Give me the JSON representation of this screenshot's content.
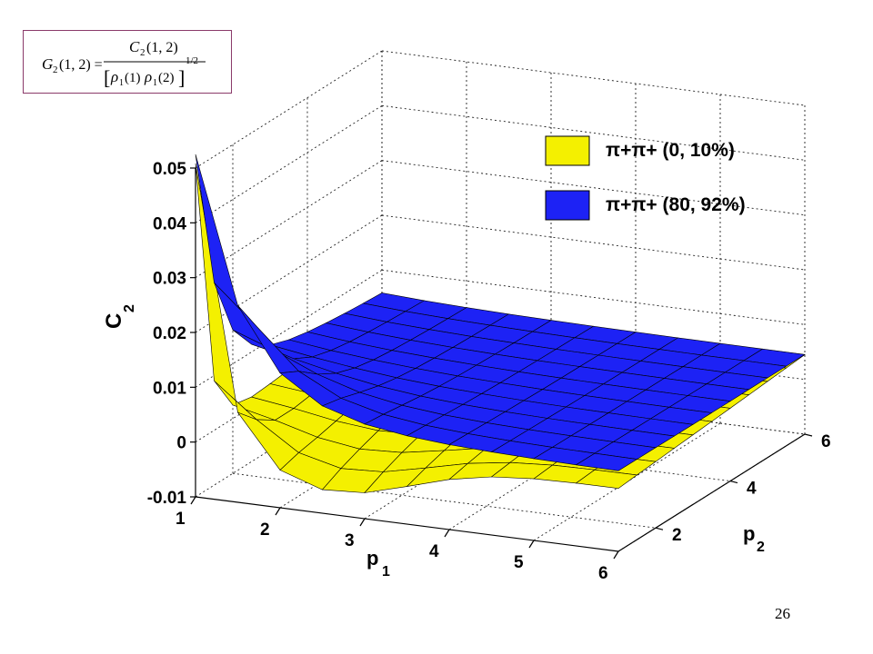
{
  "formula": {
    "lhs": "G",
    "lhs_sub": "2",
    "lhs_args": "(1, 2) =",
    "numerator": "C",
    "numerator_sub": "2",
    "numerator_args": "(1, 2)",
    "denominator_left": "[",
    "denominator_rho1": "ρ",
    "denominator_rho1_sub": "1",
    "denominator_mid": "(1)",
    "denominator_rho2": "ρ",
    "denominator_rho2_sub": "1",
    "denominator_end": "(2)",
    "denominator_right": "]",
    "exponent": "1/2"
  },
  "page_number": "26",
  "colors": {
    "yellow": "#f4f000",
    "blue": "#1d22f5",
    "frame_border": "#8a3a6a"
  },
  "chart_data": {
    "type": "surface",
    "title": "",
    "xlabel": "p",
    "xlabel_sub": "1",
    "ylabel": "p",
    "ylabel_sub": "2",
    "zlabel": "C",
    "zlabel_sub": "2",
    "xlim": [
      1,
      6
    ],
    "ylim": [
      1,
      6
    ],
    "zlim": [
      -0.01,
      0.05
    ],
    "x_ticks": [
      "1",
      "2",
      "3",
      "4",
      "5",
      "6"
    ],
    "y_ticks": [
      "2",
      "4",
      "6"
    ],
    "z_ticks": [
      "-0.01",
      "0",
      "0.01",
      "0.02",
      "0.03",
      "0.04",
      "0.05"
    ],
    "grid": true,
    "legend_position": "top-right",
    "series": [
      {
        "name": "π+π+ (0, 10%)",
        "color": "#f4f000",
        "description": "surface decaying from ~0.046 at p1=p2=1 to ~-0.005 dip near p1≈2.5, flattening toward ~0.003 at large p"
      },
      {
        "name": "π+π+ (80, 92%)",
        "color": "#1d22f5",
        "description": "surface decaying from ~0.045 at p1=p2=1, flattening to ~0.005 at large p"
      }
    ]
  }
}
